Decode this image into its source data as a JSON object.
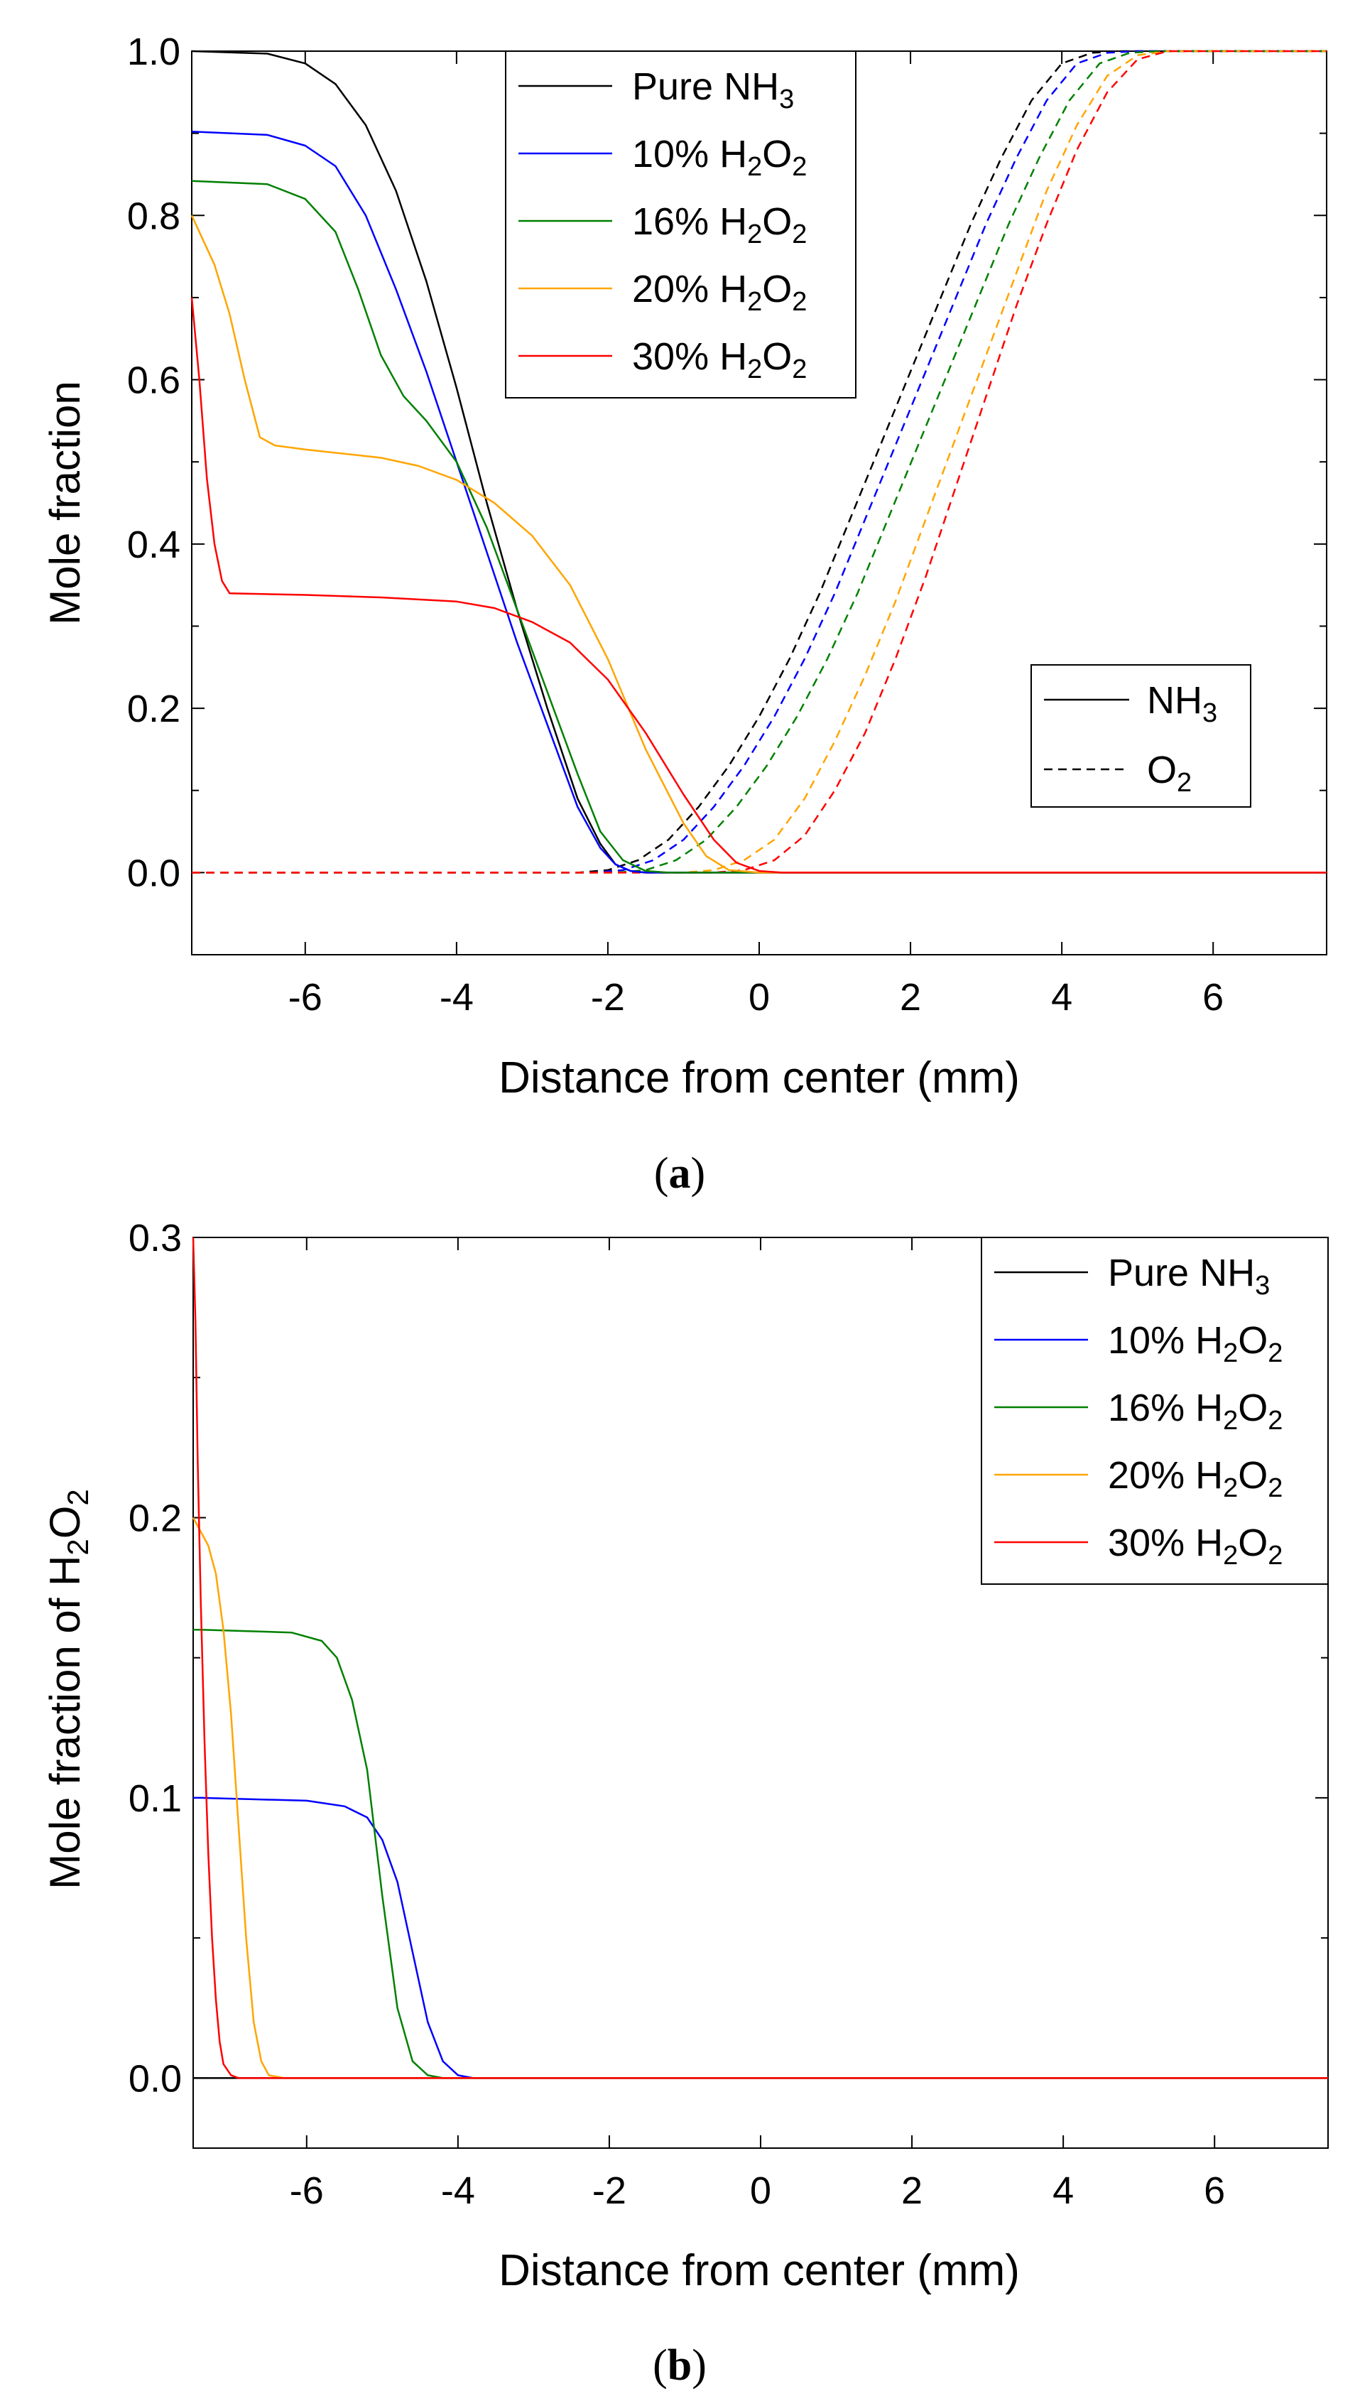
{
  "chart_data": [
    {
      "type": "line",
      "panel": "a",
      "caption": "(a)",
      "caption_open": "(",
      "caption_letter": "a",
      "caption_close": ")",
      "xlabel": "Distance from center (mm)",
      "ylabel": "Mole fraction",
      "xlim": [
        -7.5,
        7.5
      ],
      "ylim": [
        -0.1,
        1.0
      ],
      "xticks": [
        -6,
        -4,
        -2,
        0,
        2,
        4,
        6
      ],
      "xtick_labels": [
        "-6",
        "-4",
        "-2",
        "0",
        "2",
        "4",
        "6"
      ],
      "yticks": [
        0.0,
        0.2,
        0.4,
        0.6,
        0.8,
        1.0
      ],
      "ytick_labels": [
        "0.0",
        "0.2",
        "0.4",
        "0.6",
        "0.8",
        "1.0"
      ],
      "legend_case": {
        "position": "top-center",
        "items": [
          {
            "prefix": "Pure NH",
            "sub1": "3",
            "mid": "",
            "sub2": "",
            "color": "#000000"
          },
          {
            "prefix": "10% H",
            "sub1": "2",
            "mid": "O",
            "sub2": "2",
            "color": "#0000ff"
          },
          {
            "prefix": "16% H",
            "sub1": "2",
            "mid": "O",
            "sub2": "2",
            "color": "#008000"
          },
          {
            "prefix": "20% H",
            "sub1": "2",
            "mid": "O",
            "sub2": "2",
            "color": "#ffa500"
          },
          {
            "prefix": "30% H",
            "sub1": "2",
            "mid": "O",
            "sub2": "2",
            "color": "#ff0000"
          }
        ]
      },
      "legend_species": {
        "position": "right",
        "items": [
          {
            "prefix": "NH",
            "sub": "3",
            "style": "solid"
          },
          {
            "prefix": "O",
            "sub": "2",
            "style": "dashed"
          }
        ]
      },
      "series": [
        {
          "name": "Pure NH3 - NH3",
          "species": "NH3",
          "case": "Pure NH3",
          "color": "#000000",
          "style": "solid",
          "x": [
            -7.5,
            -6.5,
            -6.0,
            -5.6,
            -5.2,
            -4.8,
            -4.4,
            -4.0,
            -3.6,
            -3.2,
            -2.8,
            -2.4,
            -2.1,
            -1.9,
            -1.7,
            -1.5,
            -1.0,
            7.5
          ],
          "y": [
            1.0,
            0.997,
            0.985,
            0.96,
            0.91,
            0.83,
            0.72,
            0.59,
            0.45,
            0.32,
            0.2,
            0.09,
            0.035,
            0.01,
            0.002,
            0,
            0,
            0
          ]
        },
        {
          "name": "10% H2O2 - NH3",
          "species": "NH3",
          "case": "10% H2O2",
          "color": "#0000ff",
          "style": "solid",
          "x": [
            -7.5,
            -6.5,
            -6.0,
            -5.6,
            -5.2,
            -4.8,
            -4.4,
            -4.0,
            -3.6,
            -3.2,
            -2.8,
            -2.4,
            -2.1,
            -1.9,
            -1.7,
            -1.5,
            -1.0,
            7.5
          ],
          "y": [
            0.902,
            0.898,
            0.885,
            0.86,
            0.8,
            0.71,
            0.61,
            0.5,
            0.39,
            0.28,
            0.18,
            0.08,
            0.03,
            0.01,
            0.002,
            0,
            0,
            0
          ]
        },
        {
          "name": "16% H2O2 - NH3",
          "species": "NH3",
          "case": "16% H2O2",
          "color": "#008000",
          "style": "solid",
          "x": [
            -7.5,
            -6.5,
            -6.0,
            -5.6,
            -5.3,
            -5.0,
            -4.7,
            -4.4,
            -4.0,
            -3.6,
            -3.2,
            -2.8,
            -2.4,
            -2.1,
            -1.8,
            -1.5,
            -1.2,
            7.5
          ],
          "y": [
            0.842,
            0.838,
            0.82,
            0.78,
            0.71,
            0.63,
            0.58,
            0.55,
            0.5,
            0.42,
            0.32,
            0.22,
            0.12,
            0.05,
            0.015,
            0.002,
            0,
            0
          ]
        },
        {
          "name": "20% H2O2 - NH3",
          "species": "NH3",
          "case": "20% H2O2",
          "color": "#ffa500",
          "style": "solid",
          "x": [
            -7.5,
            -7.2,
            -7.0,
            -6.8,
            -6.6,
            -6.4,
            -6.0,
            -5.0,
            -4.5,
            -4.0,
            -3.5,
            -3.0,
            -2.5,
            -2.0,
            -1.5,
            -1.0,
            -0.7,
            -0.4,
            0,
            7.5
          ],
          "y": [
            0.8,
            0.74,
            0.68,
            0.6,
            0.53,
            0.52,
            0.515,
            0.505,
            0.495,
            0.478,
            0.45,
            0.41,
            0.35,
            0.26,
            0.15,
            0.06,
            0.02,
            0.003,
            0,
            0
          ]
        },
        {
          "name": "30% H2O2 - NH3",
          "species": "NH3",
          "case": "30% H2O2",
          "color": "#ff0000",
          "style": "solid",
          "x": [
            -7.5,
            -7.4,
            -7.3,
            -7.2,
            -7.1,
            -7.0,
            -6.0,
            -5.0,
            -4.0,
            -3.5,
            -3.0,
            -2.5,
            -2.0,
            -1.5,
            -1.0,
            -0.6,
            -0.3,
            0,
            0.3,
            7.5
          ],
          "y": [
            0.7,
            0.6,
            0.48,
            0.4,
            0.355,
            0.34,
            0.338,
            0.335,
            0.33,
            0.322,
            0.305,
            0.28,
            0.235,
            0.17,
            0.095,
            0.04,
            0.012,
            0.002,
            0,
            0
          ]
        },
        {
          "name": "Pure NH3 - O2",
          "species": "O2",
          "case": "Pure NH3",
          "color": "#000000",
          "style": "dashed",
          "x": [
            -7.5,
            -2.4,
            -2.0,
            -1.6,
            -1.2,
            -0.8,
            -0.4,
            0,
            0.4,
            0.8,
            1.2,
            1.6,
            2.0,
            2.4,
            2.8,
            3.2,
            3.6,
            4.0,
            4.4,
            4.8,
            7.5
          ],
          "y": [
            0,
            0,
            0.003,
            0.015,
            0.04,
            0.08,
            0.13,
            0.19,
            0.26,
            0.34,
            0.43,
            0.52,
            0.61,
            0.7,
            0.79,
            0.87,
            0.94,
            0.985,
            0.998,
            1.0,
            1.0
          ]
        },
        {
          "name": "10% H2O2 - O2",
          "species": "O2",
          "case": "10% H2O2",
          "color": "#0000ff",
          "style": "dashed",
          "x": [
            -7.5,
            -2.2,
            -1.8,
            -1.4,
            -1.0,
            -0.6,
            -0.2,
            0.2,
            0.6,
            1.0,
            1.4,
            1.8,
            2.2,
            2.6,
            3.0,
            3.4,
            3.8,
            4.2,
            4.6,
            5.0,
            7.5
          ],
          "y": [
            0,
            0,
            0.003,
            0.015,
            0.04,
            0.08,
            0.13,
            0.19,
            0.26,
            0.34,
            0.43,
            0.52,
            0.61,
            0.7,
            0.79,
            0.87,
            0.94,
            0.985,
            0.998,
            1.0,
            1.0
          ]
        },
        {
          "name": "16% H2O2 - O2",
          "species": "O2",
          "case": "16% H2O2",
          "color": "#008000",
          "style": "dashed",
          "x": [
            -7.5,
            -1.9,
            -1.5,
            -1.1,
            -0.7,
            -0.3,
            0.1,
            0.5,
            0.9,
            1.3,
            1.7,
            2.1,
            2.5,
            2.9,
            3.3,
            3.7,
            4.1,
            4.5,
            4.9,
            5.3,
            7.5
          ],
          "y": [
            0,
            0,
            0.003,
            0.015,
            0.04,
            0.08,
            0.13,
            0.19,
            0.26,
            0.34,
            0.43,
            0.52,
            0.61,
            0.7,
            0.79,
            0.87,
            0.94,
            0.985,
            0.998,
            1.0,
            1.0
          ]
        },
        {
          "name": "20% H2O2 - O2",
          "species": "O2",
          "case": "20% H2O2",
          "color": "#ffa500",
          "style": "dashed",
          "x": [
            -7.5,
            -1.0,
            -0.6,
            -0.2,
            0.2,
            0.6,
            1.0,
            1.4,
            1.8,
            2.2,
            2.6,
            3.0,
            3.4,
            3.8,
            4.2,
            4.6,
            5.0,
            5.4,
            7.5
          ],
          "y": [
            0,
            0,
            0.003,
            0.015,
            0.04,
            0.09,
            0.16,
            0.24,
            0.33,
            0.43,
            0.53,
            0.63,
            0.73,
            0.83,
            0.91,
            0.97,
            0.995,
            1.0,
            1.0
          ]
        },
        {
          "name": "30% H2O2 - O2",
          "species": "O2",
          "case": "30% H2O2",
          "color": "#ff0000",
          "style": "dashed",
          "x": [
            -7.5,
            -0.6,
            -0.2,
            0.2,
            0.6,
            1.0,
            1.4,
            1.8,
            2.2,
            2.6,
            3.0,
            3.4,
            3.8,
            4.2,
            4.6,
            5.0,
            5.4,
            7.5
          ],
          "y": [
            0,
            0,
            0.003,
            0.015,
            0.045,
            0.1,
            0.17,
            0.26,
            0.36,
            0.47,
            0.58,
            0.69,
            0.79,
            0.88,
            0.95,
            0.99,
            1.0,
            1.0
          ]
        }
      ]
    },
    {
      "type": "line",
      "panel": "b",
      "caption": "(b)",
      "caption_open": "(",
      "caption_letter": "b",
      "caption_close": ")",
      "xlabel": "Distance from center (mm)",
      "ylabel_prefix": "Mole fraction of H",
      "ylabel_sub1": "2",
      "ylabel_mid": "O",
      "ylabel_sub2": "2",
      "xlim": [
        -7.5,
        7.5
      ],
      "ylim": [
        -0.025,
        0.3
      ],
      "xticks": [
        -6,
        -4,
        -2,
        0,
        2,
        4,
        6
      ],
      "xtick_labels": [
        "-6",
        "-4",
        "-2",
        "0",
        "2",
        "4",
        "6"
      ],
      "yticks": [
        0.0,
        0.1,
        0.2,
        0.3
      ],
      "ytick_labels": [
        "0.0",
        "0.1",
        "0.2",
        "0.3"
      ],
      "legend_case": {
        "position": "top-right",
        "items": [
          {
            "prefix": "Pure NH",
            "sub1": "3",
            "mid": "",
            "sub2": "",
            "color": "#000000"
          },
          {
            "prefix": "10% H",
            "sub1": "2",
            "mid": "O",
            "sub2": "2",
            "color": "#0000ff"
          },
          {
            "prefix": "16% H",
            "sub1": "2",
            "mid": "O",
            "sub2": "2",
            "color": "#008000"
          },
          {
            "prefix": "20% H",
            "sub1": "2",
            "mid": "O",
            "sub2": "2",
            "color": "#ffa500"
          },
          {
            "prefix": "30% H",
            "sub1": "2",
            "mid": "O",
            "sub2": "2",
            "color": "#ff0000"
          }
        ]
      },
      "series": [
        {
          "name": "Pure NH3",
          "color": "#000000",
          "style": "solid",
          "x": [
            -7.5,
            7.5
          ],
          "y": [
            0,
            0
          ]
        },
        {
          "name": "10% H2O2",
          "color": "#0000ff",
          "style": "solid",
          "x": [
            -7.5,
            -7.4,
            -6.0,
            -5.5,
            -5.2,
            -5.0,
            -4.8,
            -4.6,
            -4.4,
            -4.2,
            -4.0,
            -3.8,
            7.5
          ],
          "y": [
            0.1,
            0.1,
            0.099,
            0.097,
            0.093,
            0.085,
            0.07,
            0.045,
            0.02,
            0.006,
            0.001,
            0,
            0
          ]
        },
        {
          "name": "16% H2O2",
          "color": "#008000",
          "style": "solid",
          "x": [
            -7.5,
            -7.4,
            -6.2,
            -5.8,
            -5.6,
            -5.4,
            -5.2,
            -5.0,
            -4.8,
            -4.6,
            -4.4,
            -4.2,
            7.5
          ],
          "y": [
            0.16,
            0.16,
            0.159,
            0.156,
            0.15,
            0.135,
            0.11,
            0.065,
            0.025,
            0.006,
            0.001,
            0,
            0
          ]
        },
        {
          "name": "20% H2O2",
          "color": "#ffa500",
          "style": "solid",
          "x": [
            -7.5,
            -7.4,
            -7.3,
            -7.2,
            -7.1,
            -7.0,
            -6.9,
            -6.8,
            -6.7,
            -6.6,
            -6.5,
            -6.3,
            7.5
          ],
          "y": [
            0.2,
            0.195,
            0.19,
            0.18,
            0.16,
            0.13,
            0.09,
            0.05,
            0.02,
            0.006,
            0.001,
            0,
            0
          ]
        },
        {
          "name": "30% H2O2",
          "color": "#ff0000",
          "style": "solid",
          "x": [
            -7.5,
            -7.47,
            -7.44,
            -7.4,
            -7.35,
            -7.3,
            -7.25,
            -7.2,
            -7.15,
            -7.1,
            -7.0,
            -6.9,
            7.5
          ],
          "y": [
            0.3,
            0.27,
            0.22,
            0.17,
            0.12,
            0.08,
            0.05,
            0.028,
            0.013,
            0.005,
            0.001,
            0,
            0
          ]
        }
      ]
    }
  ]
}
